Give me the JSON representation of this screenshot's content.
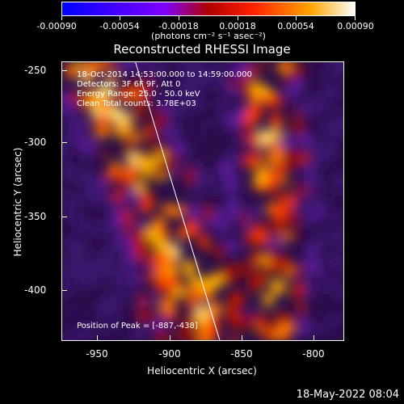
{
  "colorbar": {
    "labels": [
      "-0.00090",
      "-0.00054",
      "-0.00018",
      "0.00018",
      "0.00054",
      "0.00090"
    ],
    "units": "(photons cm⁻² s⁻¹ asec⁻²)",
    "colors": [
      "#0000ff",
      "#7f00ff",
      "#ff0000",
      "#ffa500",
      "#ffffff"
    ]
  },
  "plot": {
    "title": "Reconstructed RHESSI Image",
    "info_lines": [
      "18-Oct-2014 14:53:00.000 to 14:59:00.000",
      "Detectors: 3F 6F 9F, Att 0",
      "Energy Range: 25.0 - 50.0 keV",
      "Clean    Total counts: 3.78E+03"
    ],
    "peak_text": "Position of Peak = [-887,-438]",
    "x_axis_label": "Heliocentric X (arcsec)",
    "y_axis_label": "Heliocentric Y (arcsec)",
    "x_ticks": [
      "-950",
      "-900",
      "-850",
      "-800"
    ],
    "y_ticks": [
      "-250",
      "-300",
      "-350",
      "-400"
    ]
  },
  "footer": {
    "date": "18-May-2022 08:04"
  }
}
